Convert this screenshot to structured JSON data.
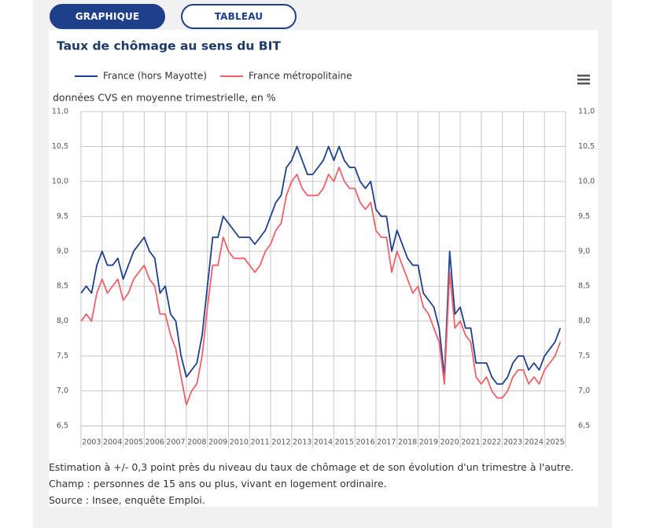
{
  "tabs": [
    "GRAPHIQUE",
    "TABLEAU"
  ],
  "chart_data": {
    "type": "line",
    "title": "Taux de chômage au sens du BIT",
    "subtitle": "données CVS en moyenne trimestrielle, en %",
    "x": [
      2003,
      2003.25,
      2003.5,
      2003.75,
      2004,
      2004.25,
      2004.5,
      2004.75,
      2005,
      2005.25,
      2005.5,
      2005.75,
      2006,
      2006.25,
      2006.5,
      2006.75,
      2007,
      2007.25,
      2007.5,
      2007.75,
      2008,
      2008.25,
      2008.5,
      2008.75,
      2009,
      2009.25,
      2009.5,
      2009.75,
      2010,
      2010.25,
      2010.5,
      2010.75,
      2011,
      2011.25,
      2011.5,
      2011.75,
      2012,
      2012.25,
      2012.5,
      2012.75,
      2013,
      2013.25,
      2013.5,
      2013.75,
      2014,
      2014.25,
      2014.5,
      2014.75,
      2015,
      2015.25,
      2015.5,
      2015.75,
      2016,
      2016.25,
      2016.5,
      2016.75,
      2017,
      2017.25,
      2017.5,
      2017.75,
      2018,
      2018.25,
      2018.5,
      2018.75,
      2019,
      2019.25,
      2019.5,
      2019.75,
      2020,
      2020.25,
      2020.5,
      2020.75,
      2021,
      2021.25,
      2021.5,
      2021.75,
      2022,
      2022.25,
      2022.5,
      2022.75,
      2023,
      2023.25,
      2023.5,
      2023.75,
      2024,
      2024.25,
      2024.5,
      2024.75,
      2025,
      2025.25,
      2025.5,
      2025.75
    ],
    "series": [
      {
        "name": "France (hors Mayotte)",
        "color": "#1f3f8f",
        "values": [
          8.4,
          8.5,
          8.4,
          8.8,
          9.0,
          8.8,
          8.8,
          8.9,
          8.6,
          8.8,
          9.0,
          9.1,
          9.2,
          9.0,
          8.9,
          8.4,
          8.5,
          8.1,
          8.0,
          7.5,
          7.2,
          7.3,
          7.4,
          7.8,
          8.5,
          9.2,
          9.2,
          9.5,
          9.4,
          9.3,
          9.2,
          9.2,
          9.2,
          9.1,
          9.2,
          9.3,
          9.5,
          9.7,
          9.8,
          10.2,
          10.3,
          10.5,
          10.3,
          10.1,
          10.1,
          10.2,
          10.3,
          10.5,
          10.3,
          10.5,
          10.3,
          10.2,
          10.2,
          10.0,
          9.9,
          10.0,
          9.6,
          9.5,
          9.5,
          9.0,
          9.3,
          9.1,
          8.9,
          8.8,
          8.8,
          8.4,
          8.3,
          8.2,
          7.9,
          7.2,
          9.0,
          8.1,
          8.2,
          7.9,
          7.9,
          7.4,
          7.4,
          7.4,
          7.2,
          7.1,
          7.1,
          7.2,
          7.4,
          7.5,
          7.5,
          7.3,
          7.4,
          7.3,
          7.5,
          7.6,
          7.7,
          7.9
        ]
      },
      {
        "name": "France métropolitaine",
        "color": "#f0606a",
        "values": [
          8.0,
          8.1,
          8.0,
          8.4,
          8.6,
          8.4,
          8.5,
          8.6,
          8.3,
          8.4,
          8.6,
          8.7,
          8.8,
          8.6,
          8.5,
          8.1,
          8.1,
          7.8,
          7.6,
          7.2,
          6.8,
          7.0,
          7.1,
          7.5,
          8.2,
          8.8,
          8.8,
          9.2,
          9.0,
          8.9,
          8.9,
          8.9,
          8.8,
          8.7,
          8.8,
          9.0,
          9.1,
          9.3,
          9.4,
          9.8,
          10.0,
          10.1,
          9.9,
          9.8,
          9.8,
          9.8,
          9.9,
          10.1,
          10.0,
          10.2,
          10.0,
          9.9,
          9.9,
          9.7,
          9.6,
          9.7,
          9.3,
          9.2,
          9.2,
          8.7,
          9.0,
          8.8,
          8.6,
          8.4,
          8.5,
          8.2,
          8.1,
          7.9,
          7.7,
          7.1,
          8.7,
          7.9,
          8.0,
          7.8,
          7.7,
          7.2,
          7.1,
          7.2,
          7.0,
          6.9,
          6.9,
          7.0,
          7.2,
          7.3,
          7.3,
          7.1,
          7.2,
          7.1,
          7.3,
          7.4,
          7.5,
          7.7
        ]
      }
    ],
    "xlim": [
      2003,
      2026
    ],
    "xticks": [
      2003,
      2004,
      2005,
      2006,
      2007,
      2008,
      2009,
      2010,
      2011,
      2012,
      2013,
      2014,
      2015,
      2016,
      2017,
      2018,
      2019,
      2020,
      2021,
      2022,
      2023,
      2024,
      2025
    ],
    "ylim": [
      6.5,
      11.0
    ],
    "yticks": [
      {
        "value": 6.5,
        "label": "6,5"
      },
      {
        "value": 7.0,
        "label": "7,0"
      },
      {
        "value": 7.5,
        "label": "7,5"
      },
      {
        "value": 8.0,
        "label": "8,0"
      },
      {
        "value": 8.5,
        "label": "8,5"
      },
      {
        "value": 9.0,
        "label": "9,0"
      },
      {
        "value": 9.5,
        "label": "9,5"
      },
      {
        "value": 10.0,
        "label": "10,0"
      },
      {
        "value": 10.5,
        "label": "10,5"
      },
      {
        "value": 11.0,
        "label": "11,0"
      }
    ],
    "grid": true,
    "legend": "top"
  },
  "notes": [
    "Estimation à +/- 0,3 point près du niveau du taux de chômage et de son évolution d'un trimestre à l'autre.",
    "Champ : personnes de 15 ans ou plus, vivant en logement ordinaire.",
    "Source : Insee, enquête Emploi."
  ]
}
